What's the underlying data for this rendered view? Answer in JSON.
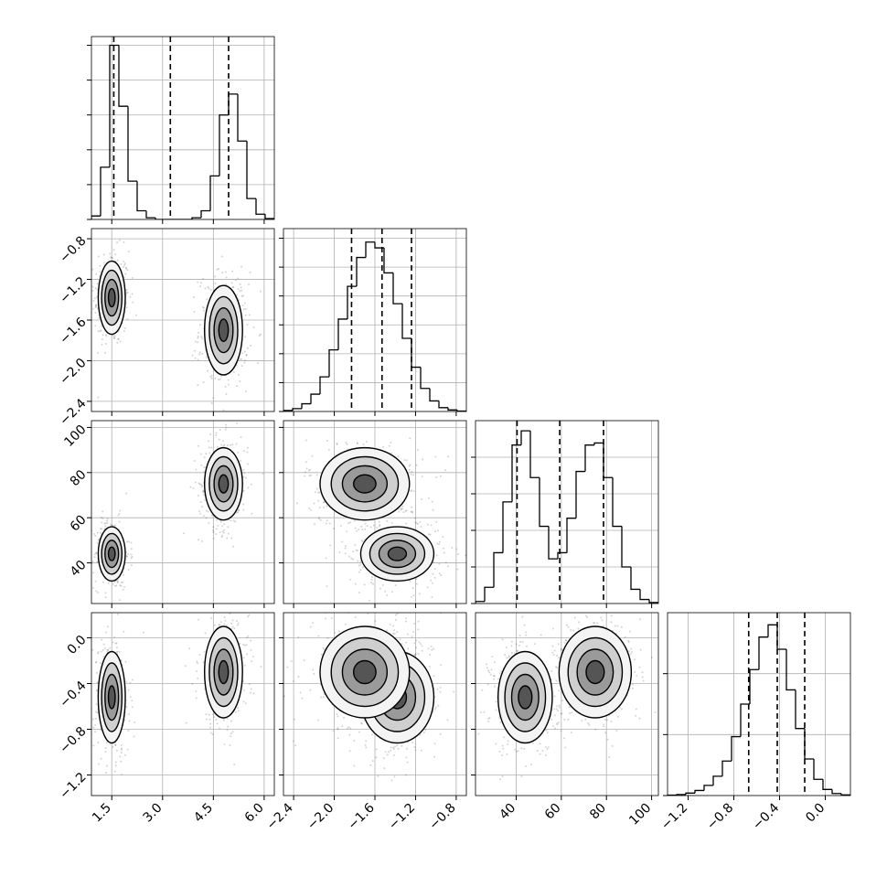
{
  "chart_data": {
    "type": "corner",
    "grid": true,
    "color": "#000000",
    "variables": [
      {
        "xlim": [
          0.9,
          6.3
        ],
        "ticks": [
          1.5,
          {
            "value": 3,
            "label": "3.0"
          },
          4.5,
          {
            "value": 6,
            "label": "6.0"
          }
        ],
        "quantiles": [
          1.56,
          3.23,
          4.95
        ],
        "bins": [
          0.9,
          1.17,
          1.44,
          1.71,
          1.98,
          2.25,
          2.52,
          2.79,
          3.06,
          3.33,
          3.6,
          3.87,
          4.14,
          4.41,
          4.68,
          4.95,
          5.22,
          5.49,
          5.76,
          6.03,
          6.3
        ],
        "counts": [
          20,
          300,
          1000,
          650,
          220,
          50,
          10,
          0,
          0,
          0,
          0,
          10,
          50,
          250,
          600,
          720,
          450,
          120,
          30,
          5
        ],
        "hist_ylim": [
          0,
          1050
        ],
        "hist_yticks": [
          0,
          200,
          400,
          600,
          800,
          1000
        ]
      },
      {
        "xlim": [
          -2.5,
          -0.7
        ],
        "ticks": [
          {
            "value": -2.4,
            "label": "−2.4"
          },
          {
            "value": -2,
            "label": "−2.0"
          },
          {
            "value": -1.6,
            "label": "−1.6"
          },
          {
            "value": -1.2,
            "label": "−1.2"
          },
          {
            "value": -0.8,
            "label": "−0.8"
          }
        ],
        "quantiles": [
          -1.83,
          -1.53,
          -1.24
        ],
        "bins": [
          -2.5,
          -2.41,
          -2.32,
          -2.23,
          -2.14,
          -2.05,
          -1.96,
          -1.87,
          -1.78,
          -1.69,
          -1.6,
          -1.51,
          -1.42,
          -1.33,
          -1.24,
          -1.15,
          -1.06,
          -0.97,
          -0.88,
          -0.79,
          -0.7
        ],
        "counts": [
          5,
          15,
          40,
          90,
          180,
          320,
          480,
          650,
          800,
          880,
          850,
          720,
          560,
          380,
          230,
          120,
          55,
          20,
          8,
          2
        ],
        "hist_ylim": [
          0,
          950
        ],
        "hist_yticks": [
          0,
          150,
          300,
          450,
          600,
          750,
          900
        ]
      },
      {
        "xlim": [
          22,
          103
        ],
        "ticks": [
          40,
          60,
          80,
          100
        ],
        "quantiles": [
          40.4,
          59.3,
          78.7
        ],
        "bins": [
          22,
          26.05,
          30.1,
          34.15,
          38.2,
          42.25,
          46.3,
          50.35,
          54.4,
          58.45,
          62.5,
          66.55,
          70.6,
          74.65,
          78.7,
          82.75,
          86.8,
          90.85,
          94.9,
          98.95,
          103
        ],
        "counts": [
          10,
          80,
          250,
          500,
          780,
          850,
          620,
          380,
          220,
          250,
          420,
          650,
          780,
          790,
          620,
          380,
          180,
          70,
          20,
          5
        ],
        "hist_ylim": [
          0,
          900
        ],
        "hist_yticks": [
          0,
          180,
          360,
          540,
          720
        ]
      },
      {
        "xlim": [
          -1.38,
          0.22
        ],
        "ticks": [
          {
            "value": -1.2,
            "label": "−1.2"
          },
          {
            "value": -0.8,
            "label": "−0.8"
          },
          {
            "value": -0.4,
            "label": "−0.4"
          },
          {
            "value": 0,
            "label": "0.0"
          }
        ],
        "quantiles": [
          -0.67,
          -0.42,
          -0.18
        ],
        "bins": [
          -1.38,
          -1.3,
          -1.22,
          -1.14,
          -1.06,
          -0.98,
          -0.9,
          -0.82,
          -0.74,
          -0.66,
          -0.58,
          -0.5,
          -0.42,
          -0.34,
          -0.26,
          -0.18,
          -0.1,
          -0.02,
          0.06,
          0.14,
          0.22
        ],
        "counts": [
          2,
          5,
          12,
          25,
          50,
          95,
          170,
          290,
          450,
          620,
          780,
          840,
          720,
          520,
          330,
          180,
          80,
          30,
          10,
          3
        ],
        "hist_ylim": [
          0,
          900
        ],
        "hist_yticks": [
          0,
          300,
          600
        ]
      }
    ],
    "modes": [
      {
        "mean": [
          1.5,
          -1.38,
          44,
          -0.52
        ],
        "sd": [
          0.2,
          0.18,
          6,
          0.2
        ]
      },
      {
        "mean": [
          4.8,
          -1.7,
          75,
          -0.3
        ],
        "sd": [
          0.28,
          0.22,
          8,
          0.2
        ]
      }
    ]
  }
}
